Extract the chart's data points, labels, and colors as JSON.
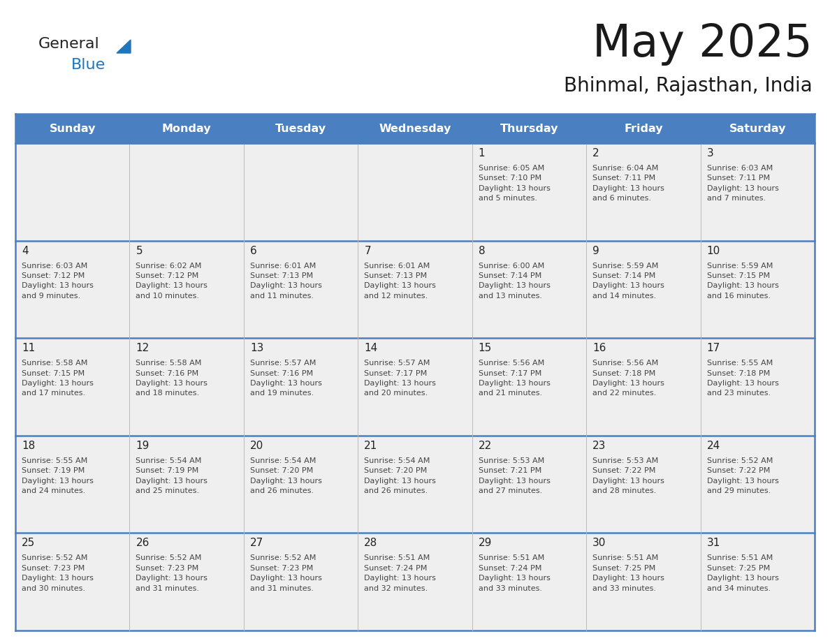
{
  "title": "May 2025",
  "subtitle": "Bhinmal, Rajasthan, India",
  "header_bg": "#4a7fc1",
  "header_text_color": "#FFFFFF",
  "days_of_week": [
    "Sunday",
    "Monday",
    "Tuesday",
    "Wednesday",
    "Thursday",
    "Friday",
    "Saturday"
  ],
  "cell_bg": "#EFEFEF",
  "cell_text_color": "#222222",
  "day_num_color": "#222222",
  "info_text_color": "#444444",
  "grid_line_color": "#4a7fc1",
  "logo_general_color": "#222222",
  "logo_blue_color": "#2076BC",
  "weeks": [
    {
      "days": [
        {
          "date": null,
          "info": null
        },
        {
          "date": null,
          "info": null
        },
        {
          "date": null,
          "info": null
        },
        {
          "date": null,
          "info": null
        },
        {
          "date": 1,
          "info": "Sunrise: 6:05 AM\nSunset: 7:10 PM\nDaylight: 13 hours\nand 5 minutes."
        },
        {
          "date": 2,
          "info": "Sunrise: 6:04 AM\nSunset: 7:11 PM\nDaylight: 13 hours\nand 6 minutes."
        },
        {
          "date": 3,
          "info": "Sunrise: 6:03 AM\nSunset: 7:11 PM\nDaylight: 13 hours\nand 7 minutes."
        }
      ]
    },
    {
      "days": [
        {
          "date": 4,
          "info": "Sunrise: 6:03 AM\nSunset: 7:12 PM\nDaylight: 13 hours\nand 9 minutes."
        },
        {
          "date": 5,
          "info": "Sunrise: 6:02 AM\nSunset: 7:12 PM\nDaylight: 13 hours\nand 10 minutes."
        },
        {
          "date": 6,
          "info": "Sunrise: 6:01 AM\nSunset: 7:13 PM\nDaylight: 13 hours\nand 11 minutes."
        },
        {
          "date": 7,
          "info": "Sunrise: 6:01 AM\nSunset: 7:13 PM\nDaylight: 13 hours\nand 12 minutes."
        },
        {
          "date": 8,
          "info": "Sunrise: 6:00 AM\nSunset: 7:14 PM\nDaylight: 13 hours\nand 13 minutes."
        },
        {
          "date": 9,
          "info": "Sunrise: 5:59 AM\nSunset: 7:14 PM\nDaylight: 13 hours\nand 14 minutes."
        },
        {
          "date": 10,
          "info": "Sunrise: 5:59 AM\nSunset: 7:15 PM\nDaylight: 13 hours\nand 16 minutes."
        }
      ]
    },
    {
      "days": [
        {
          "date": 11,
          "info": "Sunrise: 5:58 AM\nSunset: 7:15 PM\nDaylight: 13 hours\nand 17 minutes."
        },
        {
          "date": 12,
          "info": "Sunrise: 5:58 AM\nSunset: 7:16 PM\nDaylight: 13 hours\nand 18 minutes."
        },
        {
          "date": 13,
          "info": "Sunrise: 5:57 AM\nSunset: 7:16 PM\nDaylight: 13 hours\nand 19 minutes."
        },
        {
          "date": 14,
          "info": "Sunrise: 5:57 AM\nSunset: 7:17 PM\nDaylight: 13 hours\nand 20 minutes."
        },
        {
          "date": 15,
          "info": "Sunrise: 5:56 AM\nSunset: 7:17 PM\nDaylight: 13 hours\nand 21 minutes."
        },
        {
          "date": 16,
          "info": "Sunrise: 5:56 AM\nSunset: 7:18 PM\nDaylight: 13 hours\nand 22 minutes."
        },
        {
          "date": 17,
          "info": "Sunrise: 5:55 AM\nSunset: 7:18 PM\nDaylight: 13 hours\nand 23 minutes."
        }
      ]
    },
    {
      "days": [
        {
          "date": 18,
          "info": "Sunrise: 5:55 AM\nSunset: 7:19 PM\nDaylight: 13 hours\nand 24 minutes."
        },
        {
          "date": 19,
          "info": "Sunrise: 5:54 AM\nSunset: 7:19 PM\nDaylight: 13 hours\nand 25 minutes."
        },
        {
          "date": 20,
          "info": "Sunrise: 5:54 AM\nSunset: 7:20 PM\nDaylight: 13 hours\nand 26 minutes."
        },
        {
          "date": 21,
          "info": "Sunrise: 5:54 AM\nSunset: 7:20 PM\nDaylight: 13 hours\nand 26 minutes."
        },
        {
          "date": 22,
          "info": "Sunrise: 5:53 AM\nSunset: 7:21 PM\nDaylight: 13 hours\nand 27 minutes."
        },
        {
          "date": 23,
          "info": "Sunrise: 5:53 AM\nSunset: 7:22 PM\nDaylight: 13 hours\nand 28 minutes."
        },
        {
          "date": 24,
          "info": "Sunrise: 5:52 AM\nSunset: 7:22 PM\nDaylight: 13 hours\nand 29 minutes."
        }
      ]
    },
    {
      "days": [
        {
          "date": 25,
          "info": "Sunrise: 5:52 AM\nSunset: 7:23 PM\nDaylight: 13 hours\nand 30 minutes."
        },
        {
          "date": 26,
          "info": "Sunrise: 5:52 AM\nSunset: 7:23 PM\nDaylight: 13 hours\nand 31 minutes."
        },
        {
          "date": 27,
          "info": "Sunrise: 5:52 AM\nSunset: 7:23 PM\nDaylight: 13 hours\nand 31 minutes."
        },
        {
          "date": 28,
          "info": "Sunrise: 5:51 AM\nSunset: 7:24 PM\nDaylight: 13 hours\nand 32 minutes."
        },
        {
          "date": 29,
          "info": "Sunrise: 5:51 AM\nSunset: 7:24 PM\nDaylight: 13 hours\nand 33 minutes."
        },
        {
          "date": 30,
          "info": "Sunrise: 5:51 AM\nSunset: 7:25 PM\nDaylight: 13 hours\nand 33 minutes."
        },
        {
          "date": 31,
          "info": "Sunrise: 5:51 AM\nSunset: 7:25 PM\nDaylight: 13 hours\nand 34 minutes."
        }
      ]
    }
  ]
}
